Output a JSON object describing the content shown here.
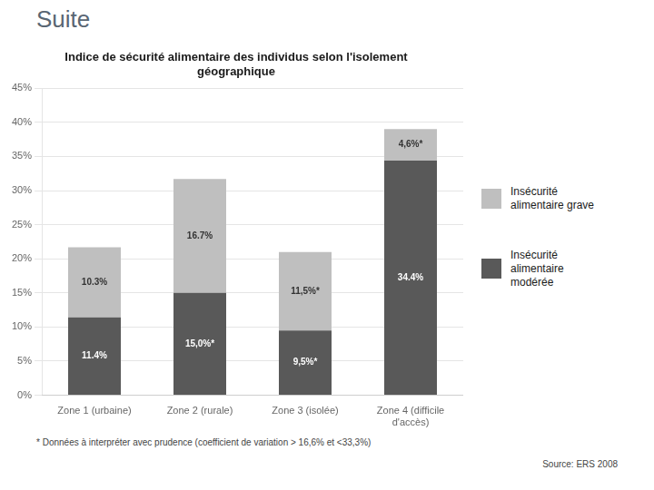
{
  "chart_data": {
    "type": "bar",
    "stacked": true,
    "title": "Indice de sécurité alimentaire des individus selon l'isolement\ngéographique",
    "annotations": [
      "Suite",
      "* Données à interpréter avec prudence (coefficient de variation > 16,6% et <33,3%)",
      "Source: ERS 2008"
    ],
    "categories": [
      "Zone 1 (urbaine)",
      "Zone 2 (rurale)",
      "Zone 3 (isolée)",
      "Zone 4 (difficile\nd'accès)"
    ],
    "series": [
      {
        "name": "Insécurité\nalimentaire\nmodérée",
        "color": "#595959",
        "values": [
          11.4,
          15.0,
          9.5,
          34.4
        ],
        "value_labels": [
          "11.4%",
          "15,0%*",
          "9,5%*",
          "34.4%"
        ]
      },
      {
        "name": "Insécurité\nalimentaire grave",
        "color": "#bfbfbf",
        "values": [
          10.3,
          16.7,
          11.5,
          4.6
        ],
        "value_labels": [
          "10.3%",
          "16.7%",
          "11,5%*",
          "4,6%*"
        ]
      }
    ],
    "ylim": [
      0,
      45
    ],
    "yticks": [
      {
        "value": 0,
        "label": "0%"
      },
      {
        "value": 5,
        "label": "5%"
      },
      {
        "value": 10,
        "label": "10%"
      },
      {
        "value": 15,
        "label": "15%"
      },
      {
        "value": 20,
        "label": "20%"
      },
      {
        "value": 25,
        "label": "25%"
      },
      {
        "value": 30,
        "label": "30%"
      },
      {
        "value": 35,
        "label": "35%"
      },
      {
        "value": 40,
        "label": "40%"
      },
      {
        "value": 45,
        "label": "45%"
      }
    ],
    "grid": true,
    "data_labels": true,
    "legend": "right"
  }
}
